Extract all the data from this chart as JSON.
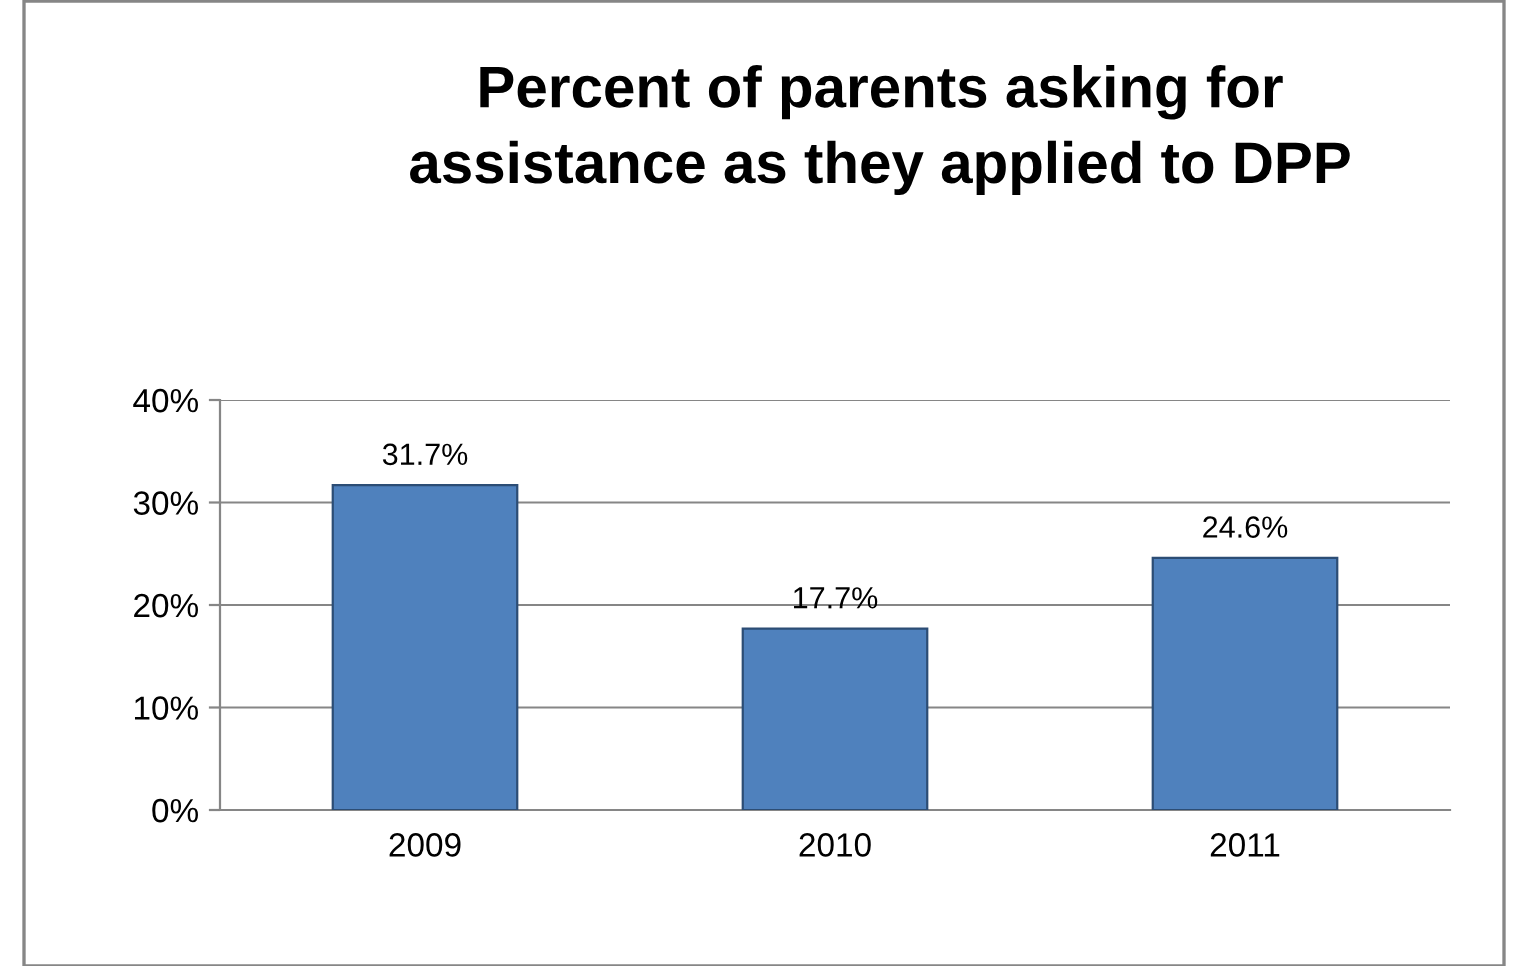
{
  "chart_data": {
    "type": "bar",
    "title": "Percent of parents asking for\nassistance as they applied to DPP",
    "categories": [
      "2009",
      "2010",
      "2011"
    ],
    "values": [
      31.7,
      17.7,
      24.6
    ],
    "value_labels": [
      "31.7%",
      "17.7%",
      "24.6%"
    ],
    "color": "#4f81bd",
    "ylim": [
      0,
      40
    ],
    "yticks": [
      {
        "value": 0,
        "label": "0%"
      },
      {
        "value": 10,
        "label": "10%"
      },
      {
        "value": 20,
        "label": "20%"
      },
      {
        "value": 30,
        "label": "30%"
      },
      {
        "value": 40,
        "label": "40%"
      }
    ],
    "grid": "y"
  }
}
